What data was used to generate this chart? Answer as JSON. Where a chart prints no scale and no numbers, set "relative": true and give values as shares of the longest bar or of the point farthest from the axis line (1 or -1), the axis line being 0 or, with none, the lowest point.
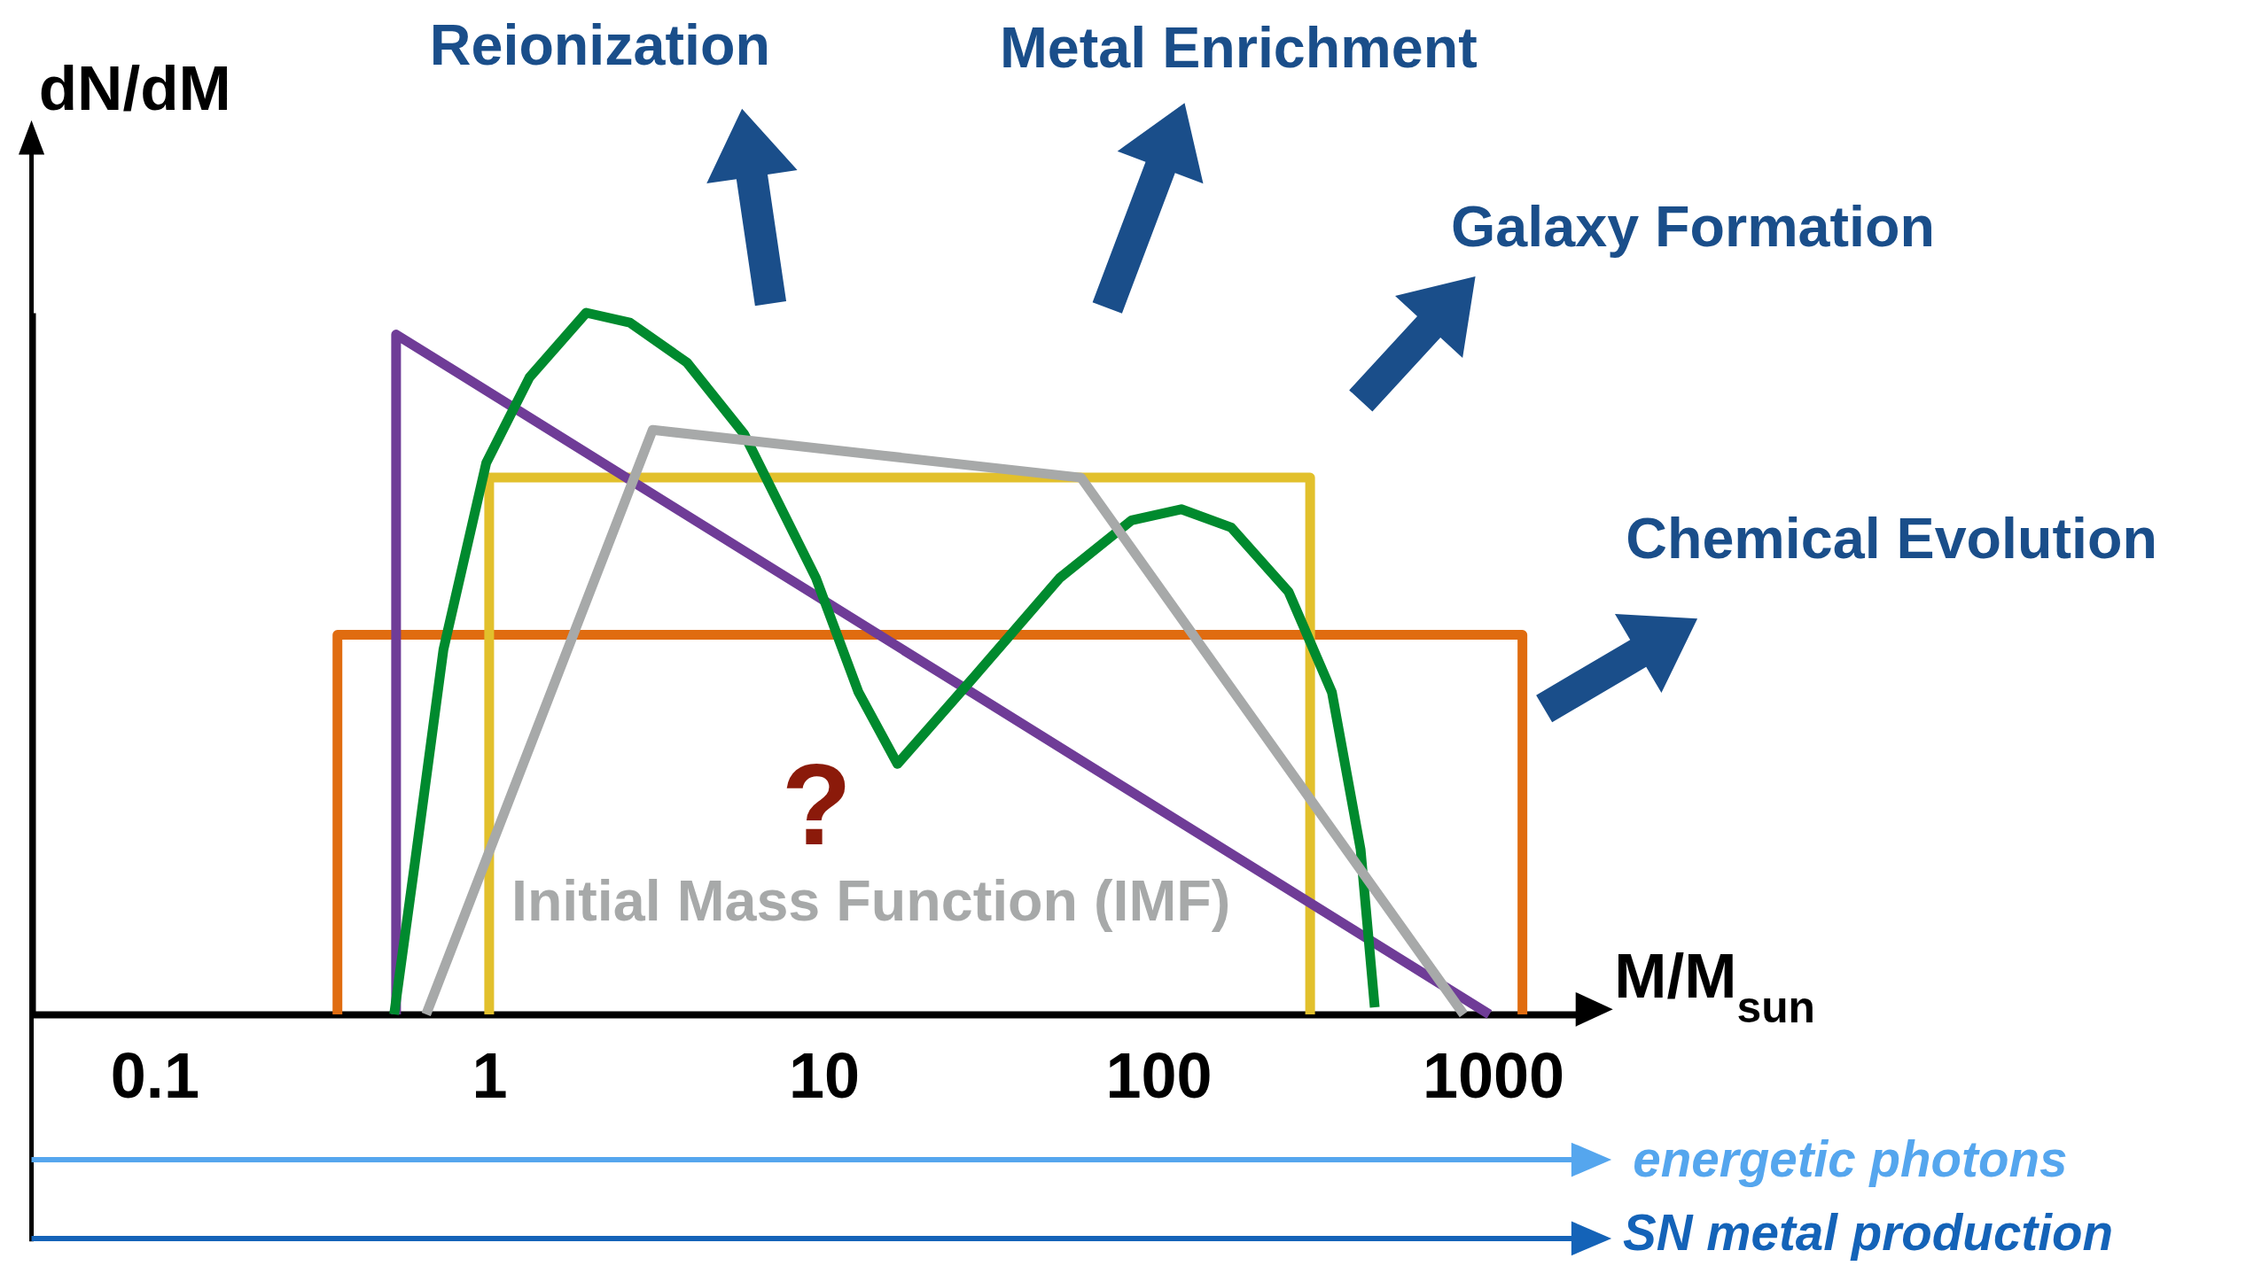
{
  "chart_data": {
    "type": "line",
    "relative": true,
    "xlabel": "M/M$_{sun}$",
    "ylabel": "dN/dM",
    "log": "x",
    "xlim": [
      0.043,
      1950
    ],
    "xticks": [
      0.1,
      1,
      10,
      100,
      1000
    ],
    "series": [
      {
        "color": "#e06c10",
        "x": [
          0.352,
          0.352,
          1224,
          1224
        ],
        "values": [
          0,
          0.541,
          0.541,
          0
        ]
      },
      {
        "color": "#e2c02c",
        "x": [
          1,
          1,
          284,
          284
        ],
        "values": [
          0,
          0.765,
          0.765,
          0
        ]
      },
      {
        "color": "#6f3c97",
        "x": [
          0.527,
          0.527,
          975
        ],
        "values": [
          0,
          0.969,
          0
        ]
      },
      {
        "color": "#008a2e",
        "x": [
          0.52,
          0.599,
          0.73,
          0.98,
          1.32,
          1.95,
          2.63,
          3.9,
          5.78,
          9.47,
          12.7,
          16.6,
          28,
          50.7,
          83,
          117,
          165,
          245,
          330,
          402,
          443
        ],
        "values": [
          0,
          0.214,
          0.52,
          0.786,
          0.908,
          1,
          0.986,
          0.929,
          0.827,
          0.622,
          0.459,
          0.357,
          0.48,
          0.622,
          0.704,
          0.72,
          0.694,
          0.602,
          0.459,
          0.235,
          0.01
        ]
      },
      {
        "color": "#a7a9a9",
        "x": [
          0.648,
          3.08,
          58.7,
          817
        ],
        "values": [
          0,
          0.833,
          0.765,
          0
        ]
      }
    ],
    "annotations": [
      "Reionization",
      "Metal Enrichment",
      "Galaxy Formation",
      "Chemical Evolution",
      "?",
      "Initial Mass Function (IMF)",
      "energetic photons",
      "SN metal production"
    ]
  }
}
